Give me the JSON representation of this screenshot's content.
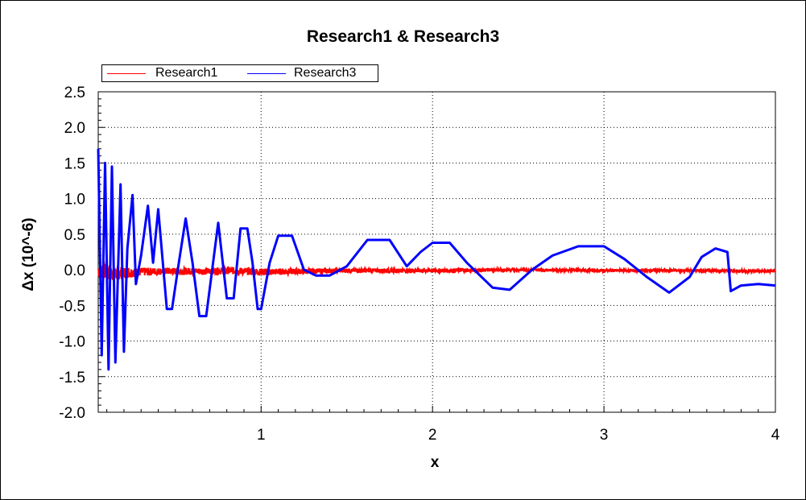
{
  "chart_data": {
    "type": "line",
    "title": "Research1 & Research3",
    "xlabel": "x",
    "ylabel": "Δx (10^-6)",
    "xlim": [
      0.05,
      4.0
    ],
    "ylim": [
      -2.0,
      2.5
    ],
    "x_ticks": [
      "1",
      "2",
      "3",
      "4"
    ],
    "y_ticks": [
      "2.5",
      "2.0",
      "1.5",
      "1.0",
      "0.5",
      "0.0",
      "-0.5",
      "-1.0",
      "-1.5",
      "-2.0"
    ],
    "grid": "dotted",
    "legend_position": "top-left",
    "series": [
      {
        "name": "Research1",
        "color": "#ff0000",
        "style": "noisy band around zero",
        "x": [
          0.05,
          0.1,
          0.15,
          0.2,
          0.3,
          0.4,
          0.5,
          0.6,
          0.7,
          0.8,
          0.9,
          1.0,
          1.5,
          2.0,
          2.5,
          3.0,
          3.5,
          4.0
        ],
        "y": [
          0.0,
          -0.03,
          -0.05,
          -0.04,
          -0.03,
          -0.02,
          -0.02,
          -0.02,
          -0.02,
          -0.01,
          -0.02,
          -0.03,
          -0.01,
          -0.01,
          0.0,
          -0.01,
          -0.01,
          -0.02
        ],
        "noise_amplitude": [
          0.12,
          0.12,
          0.1,
          0.08,
          0.06,
          0.05,
          0.05,
          0.05,
          0.05,
          0.05,
          0.05,
          0.05,
          0.03,
          0.03,
          0.02,
          0.02,
          0.02,
          0.02
        ]
      },
      {
        "name": "Research3",
        "color": "#0000ff",
        "style": "damped oscillation",
        "x": [
          0.05,
          0.07,
          0.09,
          0.11,
          0.13,
          0.15,
          0.18,
          0.2,
          0.22,
          0.25,
          0.27,
          0.3,
          0.34,
          0.37,
          0.4,
          0.45,
          0.48,
          0.52,
          0.56,
          0.6,
          0.64,
          0.68,
          0.75,
          0.8,
          0.84,
          0.88,
          0.92,
          0.95,
          0.98,
          1.0,
          1.05,
          1.1,
          1.18,
          1.25,
          1.32,
          1.4,
          1.5,
          1.62,
          1.75,
          1.85,
          1.93,
          2.0,
          2.1,
          2.2,
          2.35,
          2.45,
          2.58,
          2.7,
          2.85,
          3.0,
          3.12,
          3.25,
          3.38,
          3.5,
          3.57,
          3.65,
          3.72,
          3.74,
          3.8,
          3.9,
          4.0
        ],
        "y": [
          1.7,
          -1.2,
          1.5,
          -1.4,
          1.45,
          -1.3,
          1.2,
          -1.15,
          0.3,
          1.05,
          -0.2,
          0.2,
          0.9,
          0.1,
          0.85,
          -0.55,
          -0.55,
          0.1,
          0.72,
          0.1,
          -0.65,
          -0.65,
          0.66,
          -0.4,
          -0.4,
          0.58,
          0.58,
          0.1,
          -0.55,
          -0.55,
          0.1,
          0.48,
          0.48,
          0.0,
          -0.08,
          -0.08,
          0.05,
          0.42,
          0.42,
          0.05,
          0.25,
          0.38,
          0.38,
          0.1,
          -0.25,
          -0.28,
          0.0,
          0.2,
          0.33,
          0.33,
          0.15,
          -0.1,
          -0.32,
          -0.1,
          0.18,
          0.3,
          0.25,
          -0.3,
          -0.22,
          -0.2,
          -0.22
        ]
      }
    ]
  }
}
